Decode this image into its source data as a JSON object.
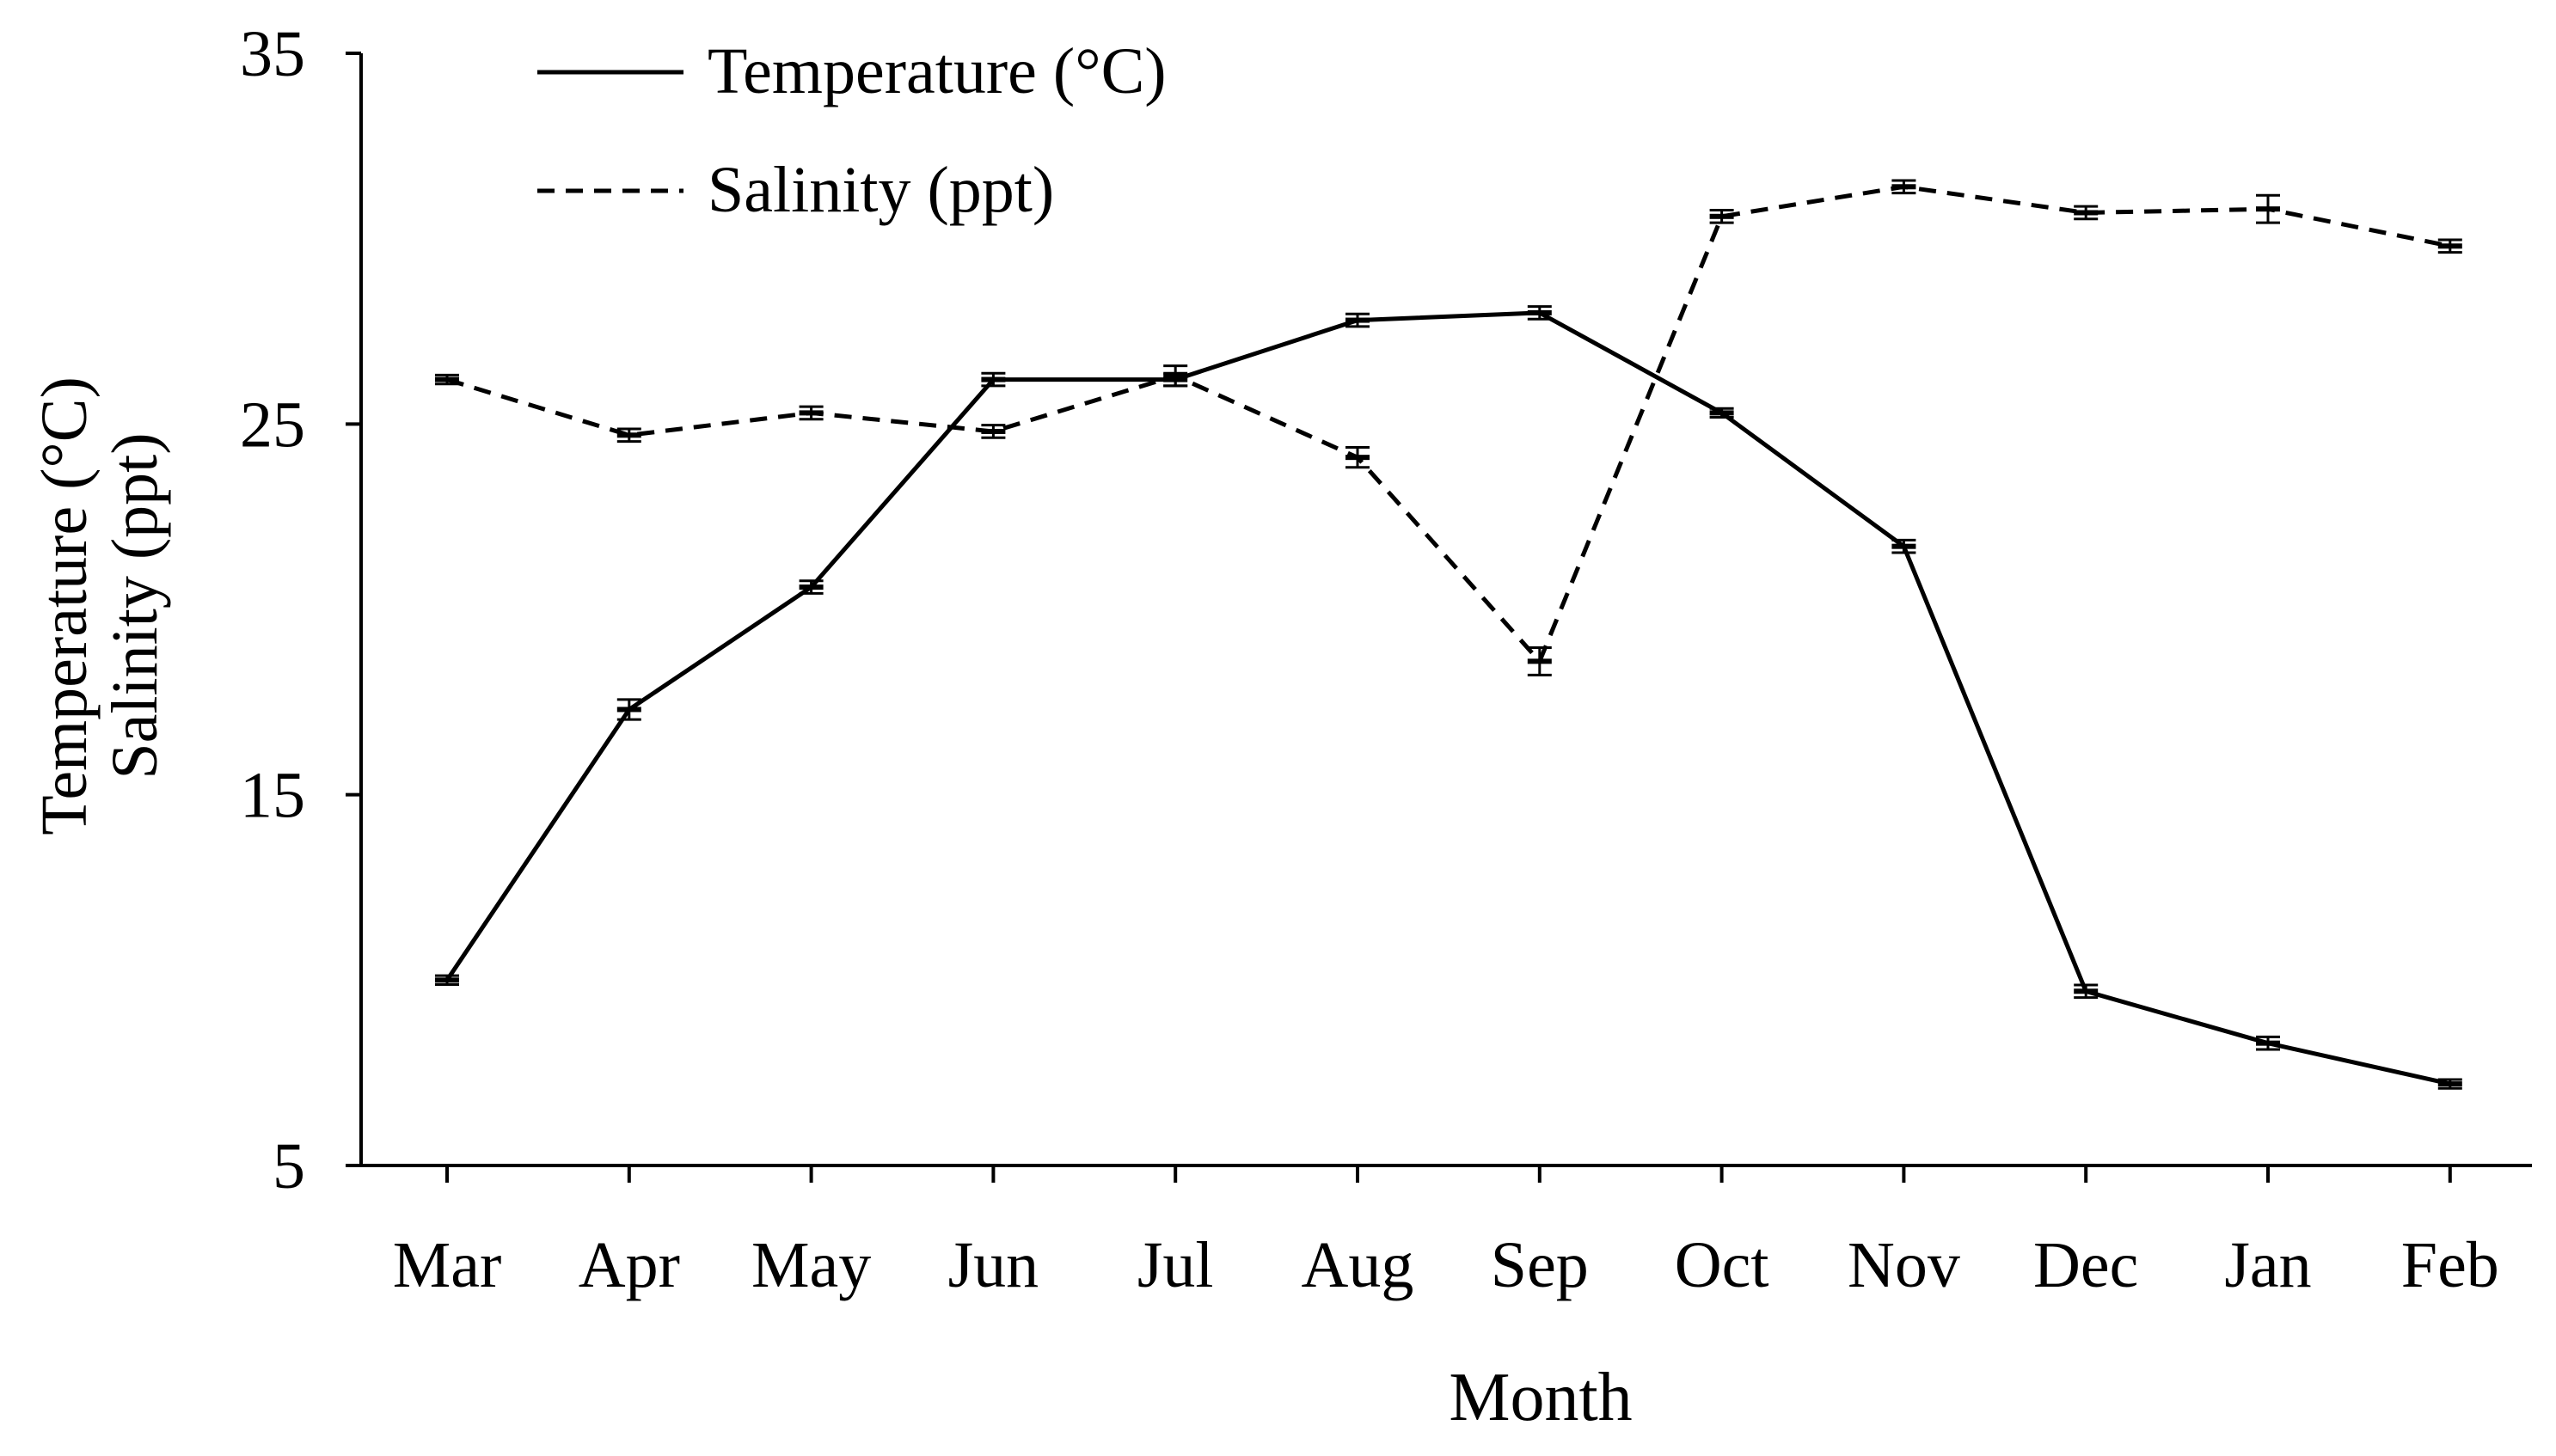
{
  "chart_data": {
    "type": "line",
    "title": "",
    "xlabel": "Month",
    "ylabel_lines": [
      "Temperature (°C)",
      "Salinity (ppt)"
    ],
    "ylabel_color": "#8B4513",
    "categories": [
      "Mar",
      "Apr",
      "May",
      "Jun",
      "Jul",
      "Aug",
      "Sep",
      "Oct",
      "Nov",
      "Dec",
      "Jan",
      "Feb"
    ],
    "ylim": [
      5,
      35
    ],
    "yticks": [
      5,
      15,
      25,
      35
    ],
    "grid": false,
    "legend_position": "top-left",
    "series": [
      {
        "name": "Temperature (°C)",
        "style": "solid",
        "color": "#000000",
        "values": [
          10.0,
          17.3,
          20.6,
          26.2,
          26.2,
          27.8,
          28.0,
          25.3,
          21.7,
          9.7,
          8.3,
          7.2
        ],
        "errors": [
          0.05,
          0.2,
          0.1,
          0.1,
          0.1,
          0.1,
          0.1,
          0.05,
          0.1,
          0.1,
          0.1,
          0.05
        ]
      },
      {
        "name": "Salinity (ppt)",
        "style": "dashed",
        "color": "#000000",
        "values": [
          26.2,
          24.7,
          25.3,
          24.8,
          26.3,
          24.1,
          18.6,
          30.6,
          31.4,
          30.7,
          30.8,
          29.8
        ],
        "errors": [
          0.05,
          0.1,
          0.1,
          0.1,
          0.2,
          0.2,
          0.3,
          0.1,
          0.1,
          0.1,
          0.3,
          0.1
        ]
      }
    ]
  }
}
